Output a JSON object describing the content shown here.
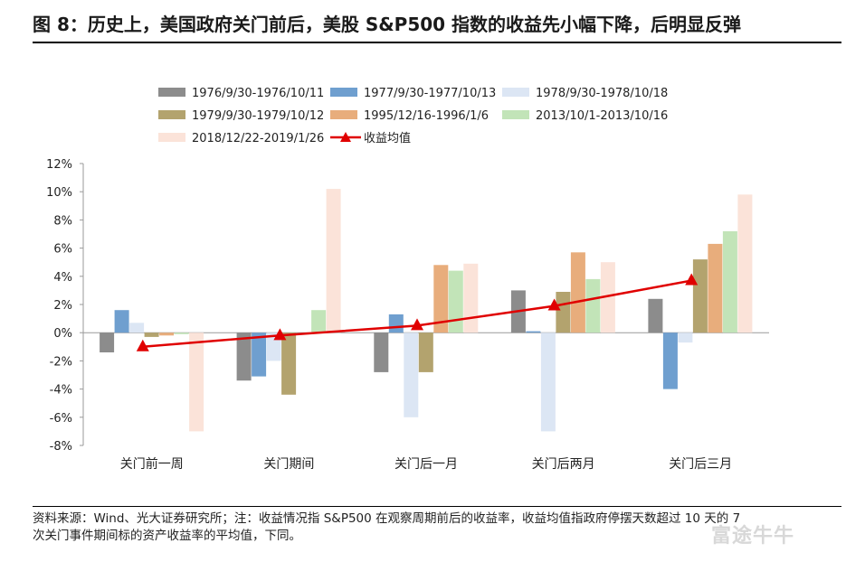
{
  "figure": {
    "title": "图 8：历史上，美国政府关门前后，美股 S&P500 指数的收益先小幅下降，后明显反弹",
    "source_line1": "资料来源：Wind、光大证券研究所；注：收益情况指 S&P500 在观察周期前后的收益率，收益均值指政府停摆天数超过 10 天的 7",
    "source_line2": "次关门事件期间标的资产收益率的平均值，下同。",
    "watermark": "富途牛牛"
  },
  "chart_data": {
    "type": "bar",
    "title": "",
    "xlabel": "",
    "ylabel": "",
    "ylim": [
      -8,
      12
    ],
    "ytick_step": 2,
    "ytick_labels": [
      "12%",
      "10%",
      "8%",
      "6%",
      "4%",
      "2%",
      "0%",
      "-2%",
      "-4%",
      "-6%",
      "-8%"
    ],
    "categories": [
      "关门前一周",
      "关门期间",
      "关门后一月",
      "关门后两月",
      "关门后三月"
    ],
    "series": [
      {
        "name": "1976/9/30-1976/10/11",
        "color": "#8c8c8c",
        "values": [
          -1.4,
          -3.4,
          -2.8,
          3.0,
          2.4
        ]
      },
      {
        "name": "1977/9/30-1977/10/13",
        "color": "#6f9fcf",
        "values": [
          1.6,
          -3.1,
          1.3,
          0.1,
          -4.0
        ]
      },
      {
        "name": "1978/9/30-1978/10/18",
        "color": "#dce6f4",
        "values": [
          0.7,
          -2.0,
          -6.0,
          -7.0,
          -0.7
        ]
      },
      {
        "name": "1979/9/30-1979/10/12",
        "color": "#b3a36e",
        "values": [
          -0.3,
          -4.4,
          -2.8,
          2.9,
          5.2
        ]
      },
      {
        "name": "1995/12/16-1996/1/6",
        "color": "#e8ad7c",
        "values": [
          -0.2,
          0.0,
          4.8,
          5.7,
          6.3
        ]
      },
      {
        "name": "2013/10/1-2013/10/16",
        "color": "#c2e4b8",
        "values": [
          -0.1,
          1.6,
          4.4,
          3.8,
          7.2
        ]
      },
      {
        "name": "2018/12/22-2019/1/26",
        "color": "#fbe3d9",
        "values": [
          -7.0,
          10.2,
          4.9,
          5.0,
          9.8
        ]
      }
    ],
    "mean_line": {
      "name": "收益均值",
      "color": "#e00000",
      "values": [
        -1.0,
        -0.2,
        0.5,
        1.9,
        3.7
      ]
    },
    "legend_position": "top"
  }
}
